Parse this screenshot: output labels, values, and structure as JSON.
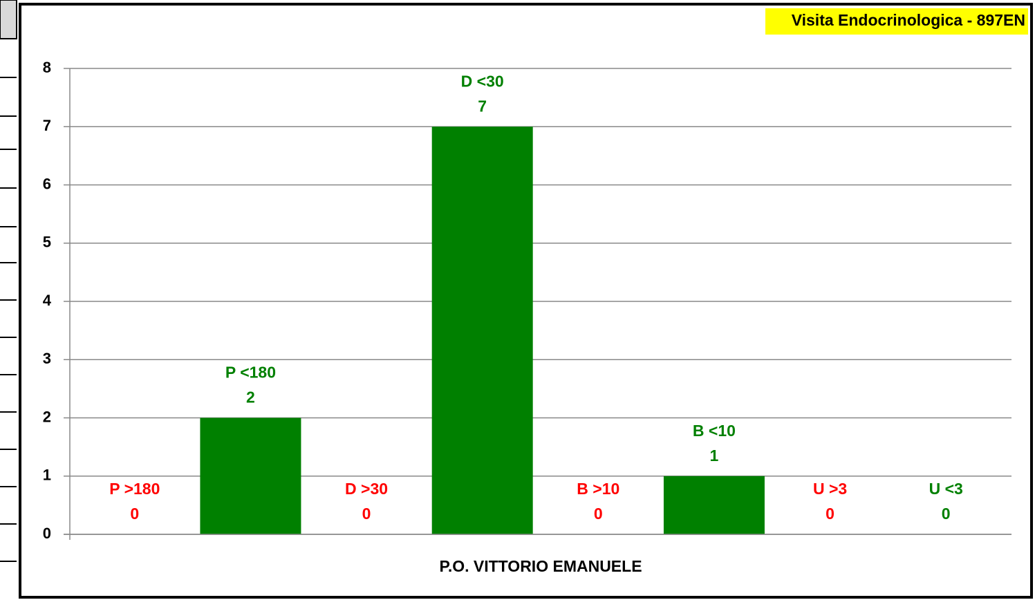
{
  "chart_data": {
    "type": "bar",
    "title": "Visita Endocrinologica - 897EN",
    "x_label": "P.O. VITTORIO EMANUELE",
    "categories": [
      "P >180",
      "P <180",
      "D >30",
      "D <30",
      "B >10",
      "B <10",
      "U >3",
      "U <3"
    ],
    "values": [
      0,
      2,
      0,
      7,
      0,
      1,
      0,
      0
    ],
    "color": "#008000",
    "label_colors": [
      "#ff0000",
      "#008000",
      "#ff0000",
      "#008000",
      "#ff0000",
      "#008000",
      "#ff0000",
      "#008000"
    ],
    "ylim": [
      0,
      8
    ],
    "yticks": [
      0,
      1,
      2,
      3,
      4,
      5,
      6,
      7,
      8
    ],
    "grid": true
  }
}
